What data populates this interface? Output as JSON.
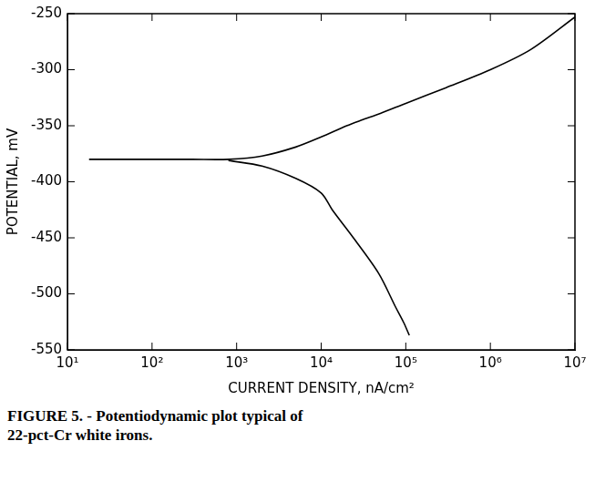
{
  "chart_data": {
    "type": "line",
    "title": "FIGURE 5. - Potentiodynamic plot typical of 22-pct-Cr white irons.",
    "x_label": "CURRENT DENSITY, nA/cm²",
    "y_label": "POTENTIAL, mV",
    "log": "x",
    "grid": false,
    "xlim": [
      10,
      10000000
    ],
    "xticks": [
      {
        "value": 10,
        "label": "10¹"
      },
      {
        "value": 100,
        "label": "10²"
      },
      {
        "value": 1000,
        "label": "10³"
      },
      {
        "value": 10000,
        "label": "10⁴"
      },
      {
        "value": 100000,
        "label": "10⁵"
      },
      {
        "value": 1000000,
        "label": "10⁶"
      },
      {
        "value": 10000000,
        "label": "10⁷"
      }
    ],
    "ylim": [
      -550,
      -250
    ],
    "yticks": [
      -550,
      -500,
      -450,
      -400,
      -350,
      -300,
      -250
    ],
    "series": [
      {
        "color": "#000000",
        "x": [
          18,
          100,
          300,
          800,
          2000,
          5000,
          10000,
          20000,
          30000,
          50000,
          100000,
          300000,
          1000000,
          3000000,
          10000000
        ],
        "values": [
          -380,
          -380,
          -380,
          -380,
          -377,
          -369,
          -360,
          -350,
          -345,
          -339,
          -330,
          -316,
          -300,
          -282,
          -253
        ]
      },
      {
        "color": "#000000",
        "x": [
          800,
          2000,
          5000,
          10000,
          13500,
          24000,
          48000,
          76000,
          95000,
          110000
        ],
        "values": [
          -381,
          -386,
          -397,
          -410,
          -425,
          -450,
          -482,
          -512,
          -526,
          -537
        ]
      }
    ]
  }
}
